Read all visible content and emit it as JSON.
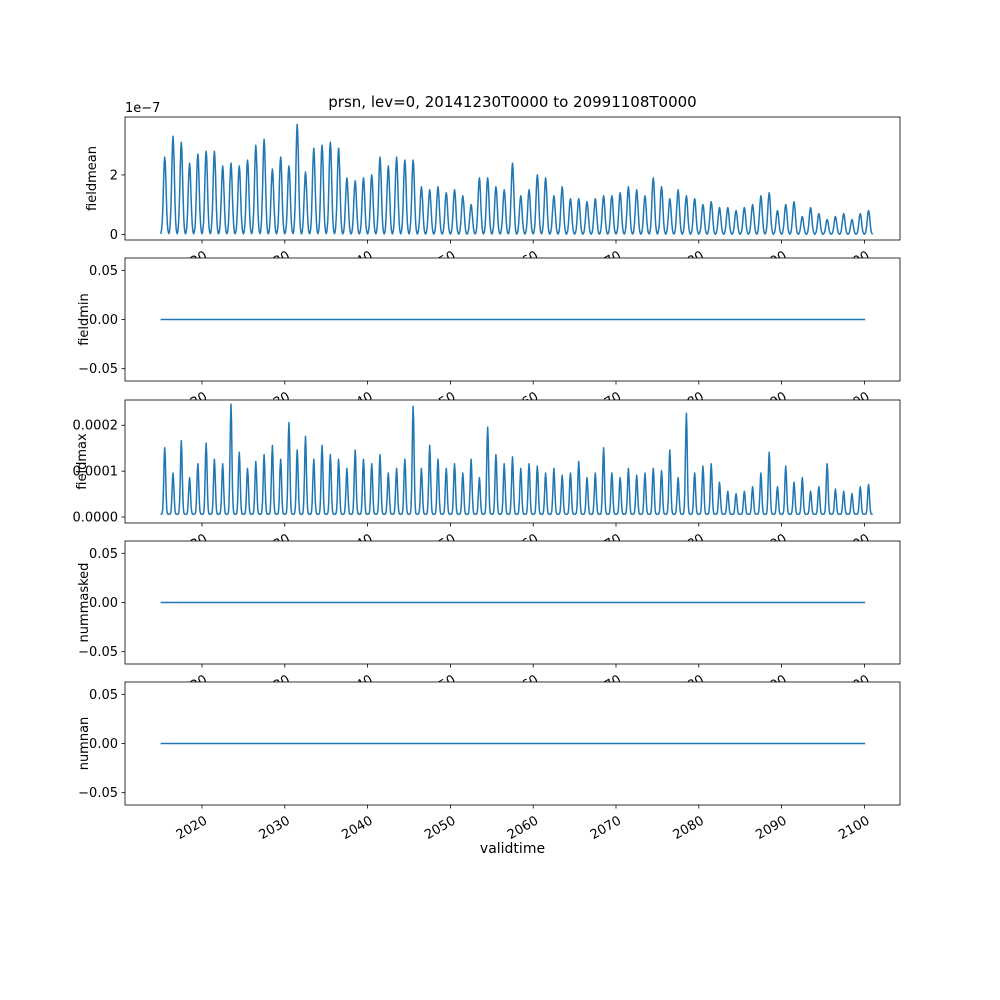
{
  "figure": {
    "title": "prsn, lev=0, 20141230T0000 to 20991108T0000",
    "xlabel": "validtime",
    "line_color": "#1f77b4",
    "background": "#ffffff",
    "x_range": [
      2010.7,
      2104.3
    ],
    "x_ticks": [
      2020,
      2030,
      2040,
      2050,
      2060,
      2070,
      2080,
      2090,
      2100
    ]
  },
  "chart_data": [
    {
      "type": "line",
      "name": "fieldmean",
      "ylabel": "fieldmean",
      "offset_label": "1e−7",
      "unit_scale": 1e-07,
      "ylim": [
        -0.19,
        3.95
      ],
      "y_ticks": [
        {
          "v": 0,
          "label": "0"
        },
        {
          "v": 2,
          "label": "2"
        }
      ],
      "series_kind": "annual_spikes",
      "x_start": 2015,
      "spike_sigma": 0.16,
      "baseline": 0,
      "ylabel_x": 96,
      "peaks": [
        2.6,
        3.3,
        3.1,
        2.4,
        2.7,
        2.8,
        2.8,
        2.3,
        2.4,
        2.3,
        2.5,
        3.0,
        3.2,
        2.2,
        2.6,
        2.3,
        3.7,
        2.1,
        2.9,
        3.0,
        3.1,
        2.9,
        1.9,
        1.8,
        1.9,
        2.0,
        2.6,
        2.3,
        2.6,
        2.5,
        2.5,
        1.6,
        1.5,
        1.6,
        1.4,
        1.5,
        1.3,
        1.0,
        1.9,
        1.9,
        1.6,
        1.5,
        2.4,
        1.3,
        1.5,
        2.0,
        1.9,
        1.3,
        1.6,
        1.2,
        1.2,
        1.1,
        1.2,
        1.3,
        1.3,
        1.4,
        1.6,
        1.5,
        1.3,
        1.9,
        1.6,
        1.2,
        1.5,
        1.3,
        1.2,
        1.0,
        1.1,
        0.9,
        0.9,
        0.8,
        0.9,
        1.0,
        1.3,
        1.4,
        0.8,
        1.0,
        1.1,
        0.6,
        0.9,
        0.7,
        0.5,
        0.6,
        0.7,
        0.5,
        0.7,
        0.8
      ]
    },
    {
      "type": "line",
      "name": "fieldmin",
      "ylabel": "fieldmin",
      "ylim": [
        -0.0625,
        0.0625
      ],
      "y_ticks": [
        {
          "v": -0.05,
          "label": "−0.05"
        },
        {
          "v": 0,
          "label": "0.00"
        },
        {
          "v": 0.05,
          "label": "0.05"
        }
      ],
      "series_kind": "flat",
      "value": 0,
      "x_span": [
        2015,
        2100.1
      ],
      "ylabel_x": 88
    },
    {
      "type": "line",
      "name": "fieldmax",
      "ylabel": "fieldmax",
      "unit_scale": 0.0001,
      "ylim": [
        -0.13,
        2.55
      ],
      "y_ticks": [
        {
          "v": 0,
          "label": "0.0000"
        },
        {
          "v": 1,
          "label": "0.0001"
        },
        {
          "v": 2,
          "label": "0.0002"
        }
      ],
      "series_kind": "annual_spikes",
      "x_start": 2015,
      "spike_sigma": 0.11,
      "baseline": 0.06,
      "ylabel_x": 86,
      "peaks": [
        1.45,
        0.9,
        1.6,
        0.8,
        1.1,
        1.55,
        1.2,
        1.1,
        2.4,
        1.35,
        1.0,
        1.15,
        1.3,
        1.5,
        1.2,
        2.0,
        1.4,
        1.7,
        1.2,
        1.5,
        1.3,
        1.2,
        1.0,
        1.4,
        1.2,
        1.1,
        1.3,
        0.9,
        1.0,
        1.2,
        2.35,
        1.0,
        1.5,
        1.2,
        1.0,
        1.1,
        0.9,
        1.2,
        0.8,
        1.9,
        1.3,
        1.1,
        1.25,
        1.0,
        1.1,
        1.05,
        0.9,
        1.0,
        0.85,
        0.9,
        1.15,
        0.8,
        0.9,
        1.45,
        0.9,
        0.8,
        1.0,
        0.85,
        0.9,
        1.0,
        0.95,
        1.4,
        0.8,
        2.2,
        0.9,
        1.05,
        1.1,
        0.7,
        0.5,
        0.45,
        0.5,
        0.6,
        0.9,
        1.35,
        0.6,
        1.05,
        0.7,
        0.8,
        0.5,
        0.6,
        1.1,
        0.55,
        0.5,
        0.45,
        0.6,
        0.65
      ]
    },
    {
      "type": "line",
      "name": "nummasked",
      "ylabel": "nummasked",
      "ylim": [
        -0.0625,
        0.0625
      ],
      "y_ticks": [
        {
          "v": -0.05,
          "label": "−0.05"
        },
        {
          "v": 0,
          "label": "0.00"
        },
        {
          "v": 0.05,
          "label": "0.05"
        }
      ],
      "series_kind": "flat",
      "value": 0,
      "x_span": [
        2015,
        2100.1
      ],
      "ylabel_x": 88
    },
    {
      "type": "line",
      "name": "numnan",
      "ylabel": "numnan",
      "ylim": [
        -0.0625,
        0.0625
      ],
      "y_ticks": [
        {
          "v": -0.05,
          "label": "−0.05"
        },
        {
          "v": 0,
          "label": "0.00"
        },
        {
          "v": 0.05,
          "label": "0.05"
        }
      ],
      "series_kind": "flat",
      "value": 0,
      "x_span": [
        2015,
        2100.1
      ],
      "ylabel_x": 88
    }
  ]
}
